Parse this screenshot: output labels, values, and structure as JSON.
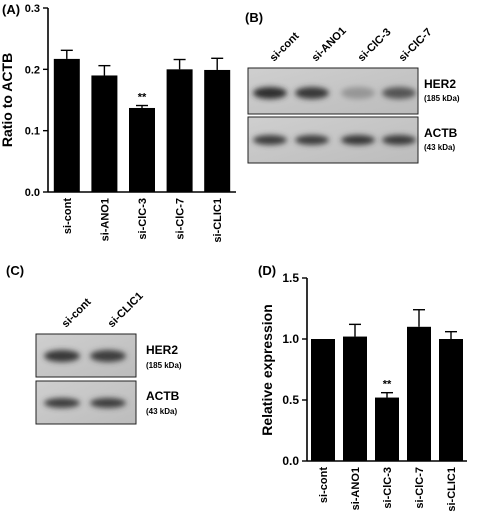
{
  "panels": {
    "a": {
      "label": "(A)"
    },
    "b": {
      "label": "(B)"
    },
    "c": {
      "label": "(C)"
    },
    "d": {
      "label": "(D)"
    }
  },
  "blots": {
    "b": {
      "lanes": [
        "si-cont",
        "si-ANO1",
        "si-ClC-3",
        "si-ClC-7"
      ],
      "her2_label": "HER2",
      "her2_kda": "(185 kDa)",
      "actb_label": "ACTB",
      "actb_kda": "(43 kDa)"
    },
    "c": {
      "lanes": [
        "si-cont",
        "si-CLIC1"
      ],
      "her2_label": "HER2",
      "her2_kda": "(185 kDa)",
      "actb_label": "ACTB",
      "actb_kda": "(43 kDa)"
    }
  },
  "chart_data": [
    {
      "panel": "A",
      "type": "bar",
      "categories": [
        "si-cont",
        "si-ANO1",
        "si-ClC-3",
        "si-ClC-7",
        "si-CLIC1"
      ],
      "values": [
        0.217,
        0.19,
        0.137,
        0.2,
        0.199
      ],
      "errors": [
        0.014,
        0.016,
        0.004,
        0.016,
        0.019
      ],
      "significance": [
        "",
        "",
        "**",
        "",
        ""
      ],
      "ylabel": "Ratio to ACTB",
      "ylim": [
        0,
        0.3
      ],
      "yticks": [
        "0.0",
        "0.1",
        "0.2",
        "0.3"
      ],
      "bar_color": "#000000"
    },
    {
      "panel": "D",
      "type": "bar",
      "categories": [
        "si-cont",
        "si-ANO1",
        "si-ClC-3",
        "si-ClC-7",
        "si-CLIC1"
      ],
      "values": [
        1.0,
        1.02,
        0.52,
        1.1,
        1.0
      ],
      "errors": [
        0.0,
        0.1,
        0.04,
        0.14,
        0.06
      ],
      "significance": [
        "",
        "",
        "**",
        "",
        ""
      ],
      "ylabel": "Relative expression",
      "ylim": [
        0,
        1.5
      ],
      "yticks": [
        "0.0",
        "0.5",
        "1.0",
        "1.5"
      ],
      "bar_color": "#000000"
    }
  ]
}
